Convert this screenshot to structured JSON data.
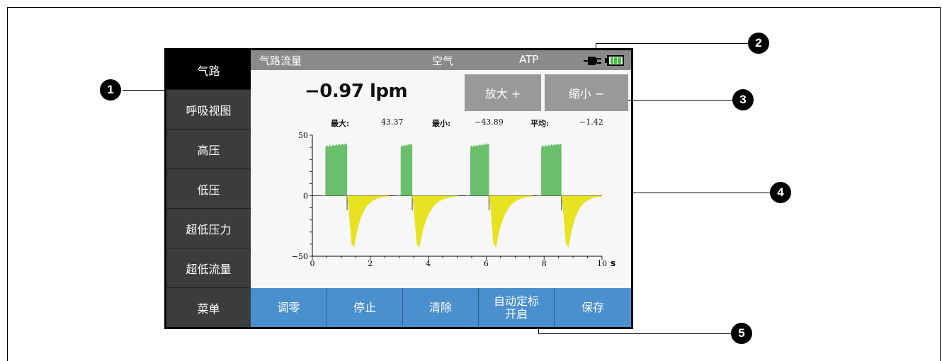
{
  "sidebar": {
    "items": [
      {
        "label": "气路",
        "active": true
      },
      {
        "label": "呼吸视图",
        "active": false
      },
      {
        "label": "高压",
        "active": false
      },
      {
        "label": "低压",
        "active": false
      },
      {
        "label": "超低压力",
        "active": false
      },
      {
        "label": "超低流量",
        "active": false
      },
      {
        "label": "菜单",
        "active": false
      }
    ]
  },
  "header": {
    "title": "气路流量",
    "gas": "空气",
    "condition": "ATP",
    "icons": [
      "plug-icon",
      "battery-icon"
    ]
  },
  "reading": {
    "value": "−0.97",
    "unit": "lpm"
  },
  "zoom": {
    "zoom_in": "放大 +",
    "zoom_out": "缩小 −"
  },
  "stats": {
    "max_label": "最大:",
    "max_value": "43.37",
    "min_label": "最小:",
    "min_value": "−43.89",
    "avg_label": "平均:",
    "avg_value": "−1.42"
  },
  "footer": {
    "zero": "调零",
    "stop": "停止",
    "clear": "清除",
    "autoscale_line1": "自动定标",
    "autoscale_line2": "开启",
    "save": "保存"
  },
  "callouts": [
    "1",
    "2",
    "3",
    "4",
    "5"
  ],
  "colors": {
    "inspiration": "#69bf6a",
    "expiration": "#e8e320",
    "button_blue": "#4a8fce",
    "sidebar": "#3a3d3c"
  },
  "chart_data": {
    "type": "area",
    "xlim": [
      0,
      10
    ],
    "ylim": [
      -50,
      50
    ],
    "x_ticks": [
      "0",
      "2",
      "4",
      "6",
      "8",
      "10"
    ],
    "y_ticks": [
      "50",
      "0",
      "−50"
    ],
    "x_unit": "s",
    "breaths": [
      {
        "insp_start": 0.45,
        "insp_end": 1.2,
        "insp_peak": 43,
        "exp_start": 1.2,
        "exp_end": 2.6,
        "exp_min": -43
      },
      {
        "insp_start": 3.05,
        "insp_end": 3.45,
        "insp_peak": 43,
        "exp_start": 3.45,
        "exp_end": 5.0,
        "exp_min": -43
      },
      {
        "insp_start": 5.45,
        "insp_end": 6.1,
        "insp_peak": 43,
        "exp_start": 6.1,
        "exp_end": 7.6,
        "exp_min": -43
      },
      {
        "insp_start": 7.9,
        "insp_end": 8.6,
        "insp_peak": 43,
        "exp_start": 8.6,
        "exp_end": 10.0,
        "exp_min": -43
      }
    ]
  }
}
